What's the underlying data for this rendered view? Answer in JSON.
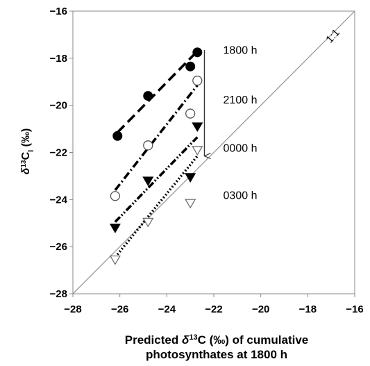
{
  "chart_data": {
    "type": "scatter",
    "title": "",
    "xlabel_parts": [
      "Predicted ",
      "δ",
      "13",
      "C (‰) of cumulative"
    ],
    "xlabel_line2": "photosynthates at 1800 h",
    "ylabel_parts": [
      "δ",
      "13",
      "C",
      "l",
      " (‰)"
    ],
    "xlim": [
      -28,
      -16
    ],
    "ylim": [
      -28,
      -16
    ],
    "x_ticks": [
      -28,
      -26,
      -24,
      -22,
      -20,
      -18,
      -16
    ],
    "y_ticks": [
      -28,
      -26,
      -24,
      -22,
      -20,
      -18,
      -16
    ],
    "x_tick_labels": [
      "−28",
      "−26",
      "−24",
      "−22",
      "−20",
      "−18",
      "−16"
    ],
    "y_tick_labels": [
      "−28",
      "−26",
      "−24",
      "−22",
      "−20",
      "−18",
      "−16"
    ],
    "grid": false,
    "one_to_one_label": "1:1",
    "series": [
      {
        "name": "1800 h",
        "marker": "filled-circle",
        "line": "dash",
        "points": [
          [
            -26.1,
            -21.3
          ],
          [
            -24.8,
            -19.6
          ],
          [
            -23.0,
            -18.35
          ],
          [
            -22.7,
            -17.75
          ]
        ],
        "fit": [
          [
            -26.1,
            -21.15
          ],
          [
            -22.75,
            -17.75
          ]
        ]
      },
      {
        "name": "2100 h",
        "marker": "open-circle",
        "line": "dash-dot",
        "points": [
          [
            -26.2,
            -23.85
          ],
          [
            -24.8,
            -21.7
          ],
          [
            -23.0,
            -20.35
          ],
          [
            -22.7,
            -18.95
          ]
        ],
        "fit": [
          [
            -26.2,
            -23.6
          ],
          [
            -22.7,
            -19.15
          ]
        ]
      },
      {
        "name": "0000 h",
        "marker": "filled-triangle-down",
        "line": "dash-dot-dot",
        "points": [
          [
            -26.2,
            -25.2
          ],
          [
            -24.8,
            -23.2
          ],
          [
            -23.0,
            -23.05
          ],
          [
            -22.7,
            -20.9
          ]
        ],
        "fit": [
          [
            -26.2,
            -24.95
          ],
          [
            -22.7,
            -21.35
          ]
        ]
      },
      {
        "name": "0300 h",
        "marker": "open-triangle-down",
        "line": "dot",
        "points": [
          [
            -26.2,
            -26.55
          ],
          [
            -24.8,
            -24.95
          ],
          [
            -23.0,
            -24.15
          ],
          [
            -22.7,
            -21.9
          ]
        ],
        "fit": [
          [
            -26.2,
            -26.45
          ],
          [
            -22.7,
            -22.15
          ]
        ]
      }
    ],
    "annotations": [
      "1800 h",
      "2100 h",
      "0000 h",
      "0300 h"
    ],
    "arrow": {
      "from": [
        -22.4,
        -17.65
      ],
      "to": [
        -22.4,
        -22.15
      ]
    }
  }
}
